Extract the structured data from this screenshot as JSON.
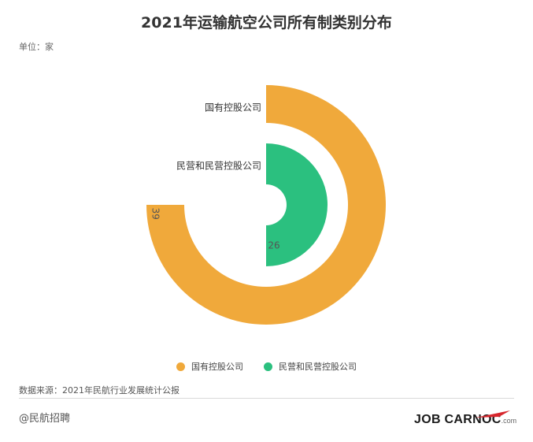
{
  "title": "2021年运输航空公司所有制类别分布",
  "unit": "单位：家",
  "chart_data": {
    "type": "pie",
    "variant": "concentric-rings",
    "max": 52,
    "series": [
      {
        "name": "国有控股公司",
        "value": 39,
        "color": "#F0A93B"
      },
      {
        "name": "民营和民营控股公司",
        "value": 26,
        "color": "#2BC07F"
      }
    ]
  },
  "legend": [
    {
      "label": "国有控股公司",
      "color": "#F0A93B"
    },
    {
      "label": "民营和民营控股公司",
      "color": "#2BC07F"
    }
  ],
  "source": "数据来源：2021年民航行业发展统计公报",
  "handle": "@民航招聘",
  "logo": {
    "main": "JOB CARNOC",
    "suffix": ".com",
    "accent": "#D7262D"
  }
}
